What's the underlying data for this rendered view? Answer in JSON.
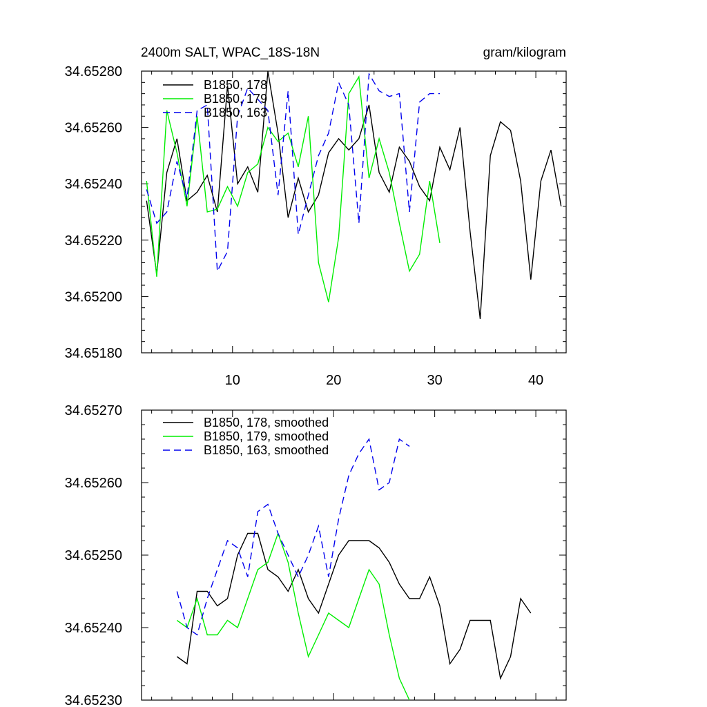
{
  "chart_data": [
    {
      "type": "line",
      "title": "2400m SALT, WPAC_18S-18N",
      "units": "gram/kilogram",
      "xlim": [
        1,
        43
      ],
      "ylim": [
        34.6518,
        34.6528
      ],
      "xticks": [
        10,
        20,
        30,
        40
      ],
      "yticks": [
        34.6518,
        34.652,
        34.6522,
        34.6524,
        34.6526,
        34.6528
      ],
      "ytick_labels": [
        "34.65180",
        "34.65200",
        "34.65220",
        "34.65240",
        "34.65260",
        "34.65280"
      ],
      "xtick_labels": [
        "10",
        "20",
        "30",
        "40"
      ],
      "legend_position": "top-left",
      "series": [
        {
          "name": "B1850, 178",
          "color": "#000000",
          "dash": "solid",
          "x": [
            1.5,
            2.5,
            3.5,
            4.5,
            5.5,
            6.5,
            7.5,
            8.5,
            9.5,
            10.5,
            11.5,
            12.5,
            13.5,
            14.5,
            15.5,
            16.5,
            17.5,
            18.5,
            19.5,
            20.5,
            21.5,
            22.5,
            23.5,
            24.5,
            25.5,
            26.5,
            27.5,
            28.5,
            29.5,
            30.5,
            31.5,
            32.5,
            33.5,
            34.5,
            35.5,
            36.5,
            37.5,
            38.5,
            39.5,
            40.5,
            41.5,
            42.5
          ],
          "y": [
            34.65234,
            34.65208,
            34.65244,
            34.65256,
            34.65234,
            34.65237,
            34.65243,
            34.6523,
            34.65275,
            34.6524,
            34.65246,
            34.65237,
            34.6528,
            34.65258,
            34.65228,
            34.65242,
            34.6523,
            34.65236,
            34.65251,
            34.65256,
            34.65252,
            34.65256,
            34.65268,
            34.65244,
            34.65237,
            34.65253,
            34.65248,
            34.65239,
            34.65234,
            34.65253,
            34.65245,
            34.6526,
            34.65223,
            34.65192,
            34.6525,
            34.65262,
            34.65259,
            34.65241,
            34.65206,
            34.65241,
            34.65252,
            34.65232
          ]
        },
        {
          "name": "B1850, 179",
          "color": "#00ee00",
          "dash": "solid",
          "x": [
            1.5,
            2.5,
            3.5,
            4.5,
            5.5,
            6.5,
            7.5,
            8.5,
            9.5,
            10.5,
            11.5,
            12.5,
            13.5,
            14.5,
            15.5,
            16.5,
            17.5,
            18.5,
            19.5,
            20.5,
            21.5,
            22.5,
            23.5,
            24.5,
            25.5,
            26.5,
            27.5,
            28.5,
            29.5,
            30.5
          ],
          "y": [
            34.65241,
            34.65207,
            34.65266,
            34.65251,
            34.65232,
            34.65264,
            34.6523,
            34.65231,
            34.65239,
            34.65232,
            34.65244,
            34.65247,
            34.6526,
            34.65255,
            34.65258,
            34.65246,
            34.65264,
            34.65212,
            34.65198,
            34.65221,
            34.65272,
            34.65278,
            34.65242,
            34.65256,
            34.65244,
            34.65226,
            34.65209,
            34.65215,
            34.65241,
            34.65219
          ]
        },
        {
          "name": "B1850, 163",
          "color": "#0000ee",
          "dash": "dashed",
          "x": [
            1.5,
            2.5,
            3.5,
            4.5,
            5.5,
            6.5,
            7.5,
            8.5,
            9.5,
            10.5,
            11.5,
            12.5,
            13.5,
            14.5,
            15.5,
            16.5,
            17.5,
            18.5,
            19.5,
            20.5,
            21.5,
            22.5,
            23.5,
            24.5,
            25.5,
            26.5,
            27.5,
            28.5,
            29.5,
            30.5
          ],
          "y": [
            34.65238,
            34.65226,
            34.6523,
            34.65248,
            34.65235,
            34.65266,
            34.65268,
            34.65209,
            34.65216,
            34.65264,
            34.65274,
            34.6527,
            34.65266,
            34.65236,
            34.65273,
            34.65222,
            34.65236,
            34.6525,
            34.65258,
            34.65276,
            34.65268,
            34.65226,
            34.65279,
            34.65273,
            34.65271,
            34.65272,
            34.6523,
            34.65269,
            34.65272,
            34.65272
          ]
        }
      ]
    },
    {
      "type": "line",
      "xlim": [
        1,
        43
      ],
      "ylim": [
        34.6523,
        34.6527
      ],
      "xticks": [
        10,
        20,
        30,
        40
      ],
      "yticks": [
        34.6523,
        34.6524,
        34.6525,
        34.6526,
        34.6527
      ],
      "ytick_labels": [
        "34.65230",
        "34.65240",
        "34.65250",
        "34.65260",
        "34.65270"
      ],
      "legend_position": "top-left",
      "series": [
        {
          "name": "B1850, 178, smoothed",
          "color": "#000000",
          "dash": "solid",
          "x": [
            4.5,
            5.5,
            6.5,
            7.5,
            8.5,
            9.5,
            10.5,
            11.5,
            12.5,
            13.5,
            14.5,
            15.5,
            16.5,
            17.5,
            18.5,
            19.5,
            20.5,
            21.5,
            22.5,
            23.5,
            24.5,
            25.5,
            26.5,
            27.5,
            28.5,
            29.5,
            30.5,
            31.5,
            32.5,
            33.5,
            34.5,
            35.5,
            36.5,
            37.5,
            38.5,
            39.5
          ],
          "y": [
            34.65236,
            34.65235,
            34.65245,
            34.65245,
            34.65243,
            34.65244,
            34.6525,
            34.65253,
            34.65253,
            34.65248,
            34.65247,
            34.65245,
            34.65248,
            34.65244,
            34.65242,
            34.65246,
            34.6525,
            34.65252,
            34.65252,
            34.65252,
            34.65251,
            34.65249,
            34.65246,
            34.65244,
            34.65244,
            34.65247,
            34.65243,
            34.65235,
            34.65237,
            34.65241,
            34.65241,
            34.65241,
            34.65233,
            34.65236,
            34.65244,
            34.65242
          ]
        },
        {
          "name": "B1850, 179, smoothed",
          "color": "#00ee00",
          "dash": "solid",
          "x": [
            4.5,
            5.5,
            6.5,
            7.5,
            8.5,
            9.5,
            10.5,
            11.5,
            12.5,
            13.5,
            14.5,
            15.5,
            16.5,
            17.5,
            18.5,
            19.5,
            20.5,
            21.5,
            22.5,
            23.5,
            24.5,
            25.5,
            26.5,
            27.5
          ],
          "y": [
            34.65241,
            34.6524,
            34.65244,
            34.65239,
            34.65239,
            34.65241,
            34.6524,
            34.65244,
            34.65248,
            34.65249,
            34.65253,
            34.65249,
            34.65242,
            34.65236,
            34.65239,
            34.65242,
            34.65241,
            34.6524,
            34.65244,
            34.65248,
            34.65246,
            34.65239,
            34.65233,
            34.6523
          ]
        },
        {
          "name": "B1850, 163, smoothed",
          "color": "#0000ee",
          "dash": "dashed",
          "x": [
            4.5,
            5.5,
            6.5,
            7.5,
            8.5,
            9.5,
            10.5,
            11.5,
            12.5,
            13.5,
            14.5,
            15.5,
            16.5,
            17.5,
            18.5,
            19.5,
            20.5,
            21.5,
            22.5,
            23.5,
            24.5,
            25.5,
            26.5,
            27.5
          ],
          "y": [
            34.65245,
            34.6524,
            34.65239,
            34.65244,
            34.65248,
            34.65252,
            34.65251,
            34.65247,
            34.65256,
            34.65257,
            34.65253,
            34.6525,
            34.65247,
            34.6525,
            34.65254,
            34.65247,
            34.65255,
            34.65261,
            34.65264,
            34.65266,
            34.65259,
            34.6526,
            34.65266,
            34.65265
          ]
        }
      ]
    }
  ]
}
